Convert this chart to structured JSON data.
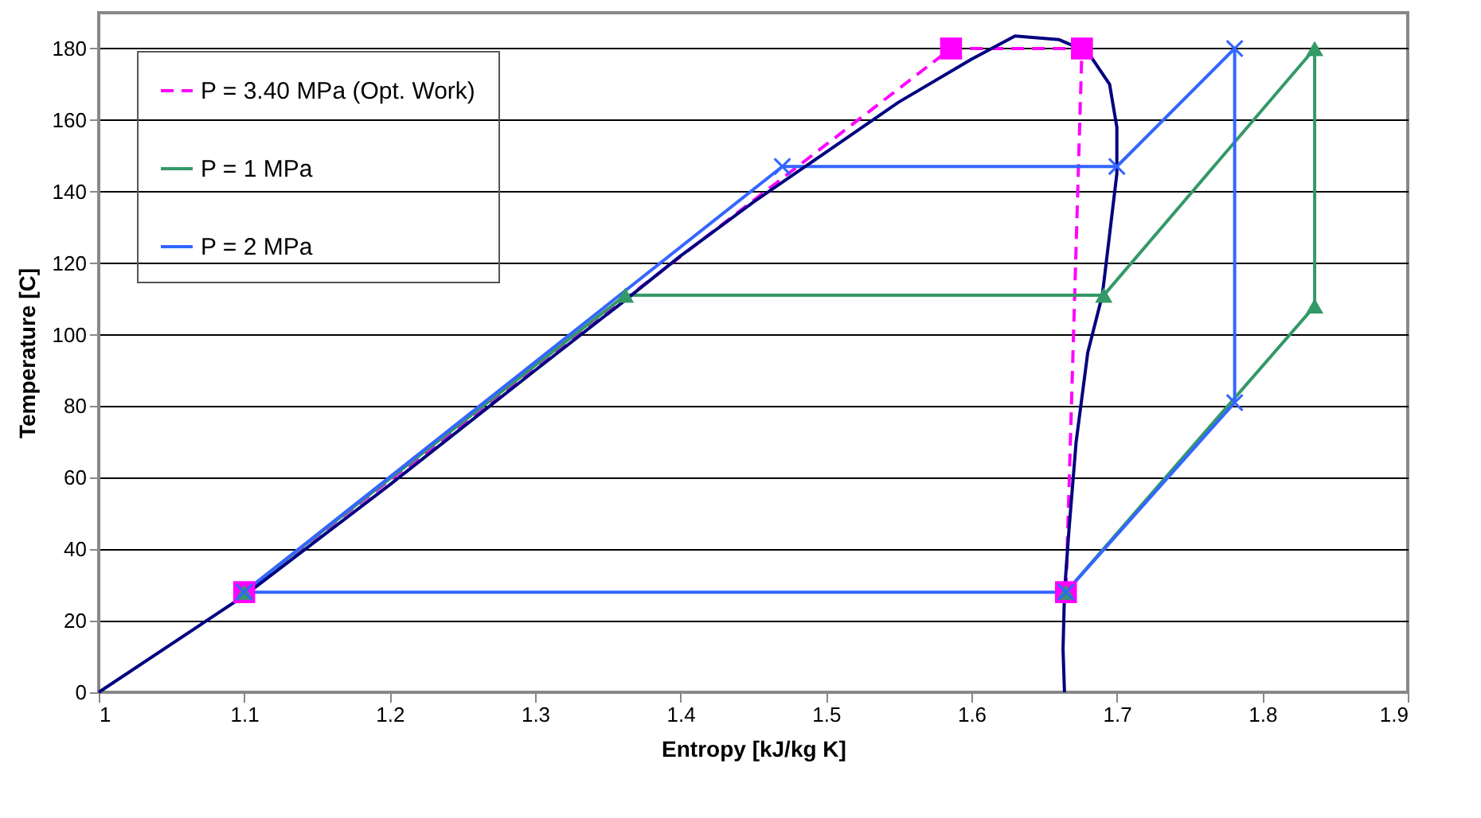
{
  "chart_data": {
    "type": "line",
    "xlabel": "Entropy [kJ/kg K]",
    "ylabel": "Temperature [C]",
    "xlim": [
      1,
      1.9
    ],
    "xticks": [
      1,
      1.1,
      1.2,
      1.3,
      1.4,
      1.5,
      1.6,
      1.7,
      1.8,
      1.9
    ],
    "ylim": [
      0,
      190
    ],
    "yticks": [
      0,
      20,
      40,
      60,
      80,
      100,
      120,
      140,
      160,
      180
    ],
    "grid": "y",
    "legend": "top left",
    "series": [
      {
        "name": "P = 3.40 MPa (Opt. Work)",
        "color": "#ff00ff",
        "marker": "square",
        "line_style": "dashed",
        "x": [
          1.1,
          1.586,
          1.676,
          1.665
        ],
        "values": [
          28,
          180,
          180,
          28
        ]
      },
      {
        "name": "P = 1 MPa",
        "color": "#339966",
        "marker": "triangle",
        "line_style": "solid",
        "x": [
          1.1,
          1.362,
          1.691,
          1.836,
          1.836,
          1.665
        ],
        "values": [
          28,
          111,
          111,
          180,
          108,
          28
        ]
      },
      {
        "name": "P = 2 MPa",
        "color": "#3366ff",
        "marker": "cross",
        "line_style": "solid",
        "x": [
          1.1,
          1.47,
          1.7,
          1.781,
          1.781,
          1.665
        ],
        "values": [
          28,
          147,
          147,
          180,
          81,
          28
        ]
      },
      {
        "color": "#3366ff",
        "marker": "none",
        "line_style": "solid",
        "x": [
          1.1,
          1.665
        ],
        "values": [
          28,
          28
        ]
      },
      {
        "color": "#000080",
        "marker": "none",
        "line_style": "solid",
        "x": [
          1,
          1.1,
          1.2,
          1.3,
          1.36,
          1.4,
          1.45,
          1.5,
          1.55,
          1.6,
          1.63,
          1.66,
          1.68,
          1.695,
          1.7,
          1.7,
          1.695,
          1.69,
          1.68,
          1.672,
          1.667,
          1.664,
          1.663,
          1.664
        ],
        "values": [
          0,
          27,
          58,
          90,
          109,
          122,
          137,
          151,
          165,
          177,
          183.5,
          182.5,
          179,
          170,
          158,
          145,
          128,
          111,
          95,
          70,
          45,
          28,
          12,
          0
        ]
      }
    ]
  }
}
